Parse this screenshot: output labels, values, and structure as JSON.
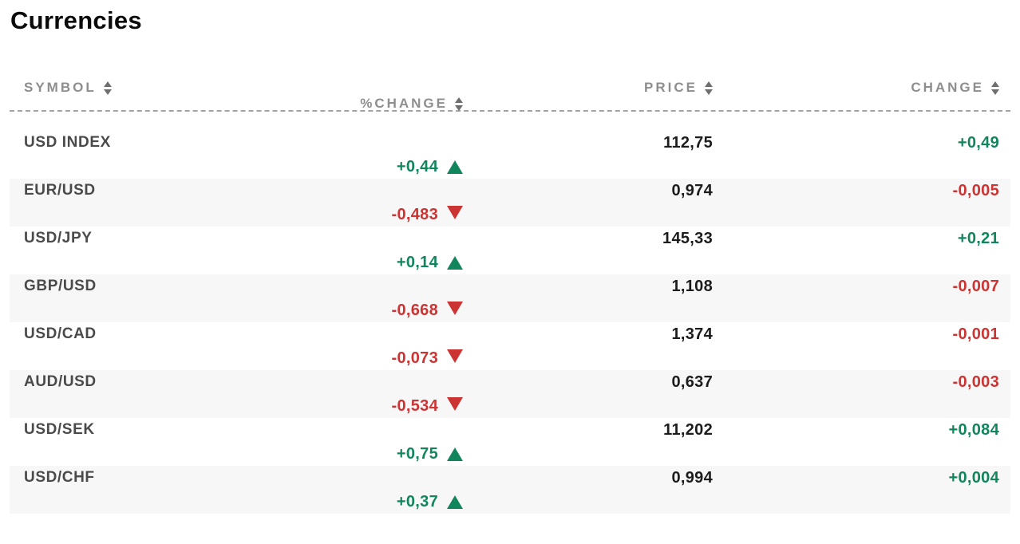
{
  "title": "Currencies",
  "table": {
    "columns": [
      {
        "label": "SYMBOL"
      },
      {
        "label": "PRICE"
      },
      {
        "label": "CHANGE"
      },
      {
        "label": "%CHANGE"
      }
    ],
    "rows": [
      {
        "symbol": "USD INDEX",
        "price": "112,75",
        "change": "+0,49",
        "pct_change": "+0,44",
        "direction": "up"
      },
      {
        "symbol": "EUR/USD",
        "price": "0,974",
        "change": "-0,005",
        "pct_change": "-0,483",
        "direction": "down"
      },
      {
        "symbol": "USD/JPY",
        "price": "145,33",
        "change": "+0,21",
        "pct_change": "+0,14",
        "direction": "up"
      },
      {
        "symbol": "GBP/USD",
        "price": "1,108",
        "change": "-0,007",
        "pct_change": "-0,668",
        "direction": "down"
      },
      {
        "symbol": "USD/CAD",
        "price": "1,374",
        "change": "-0,001",
        "pct_change": "-0,073",
        "direction": "down"
      },
      {
        "symbol": "AUD/USD",
        "price": "0,637",
        "change": "-0,003",
        "pct_change": "-0,534",
        "direction": "down"
      },
      {
        "symbol": "USD/SEK",
        "price": "11,202",
        "change": "+0,084",
        "pct_change": "+0,75",
        "direction": "up"
      },
      {
        "symbol": "USD/CHF",
        "price": "0,994",
        "change": "+0,004",
        "pct_change": "+0,37",
        "direction": "up"
      }
    ]
  },
  "colors": {
    "positive": "#11855c",
    "negative": "#cc3433",
    "row_stripe": "#f7f7f7",
    "header_text": "#8e8e8e",
    "symbol_text": "#4a4a4a",
    "value_text": "#1c1c1c",
    "title_text": "#0b0b0b",
    "divider": "#a3a3a3",
    "sort_arrow": "#6e6e6e"
  }
}
